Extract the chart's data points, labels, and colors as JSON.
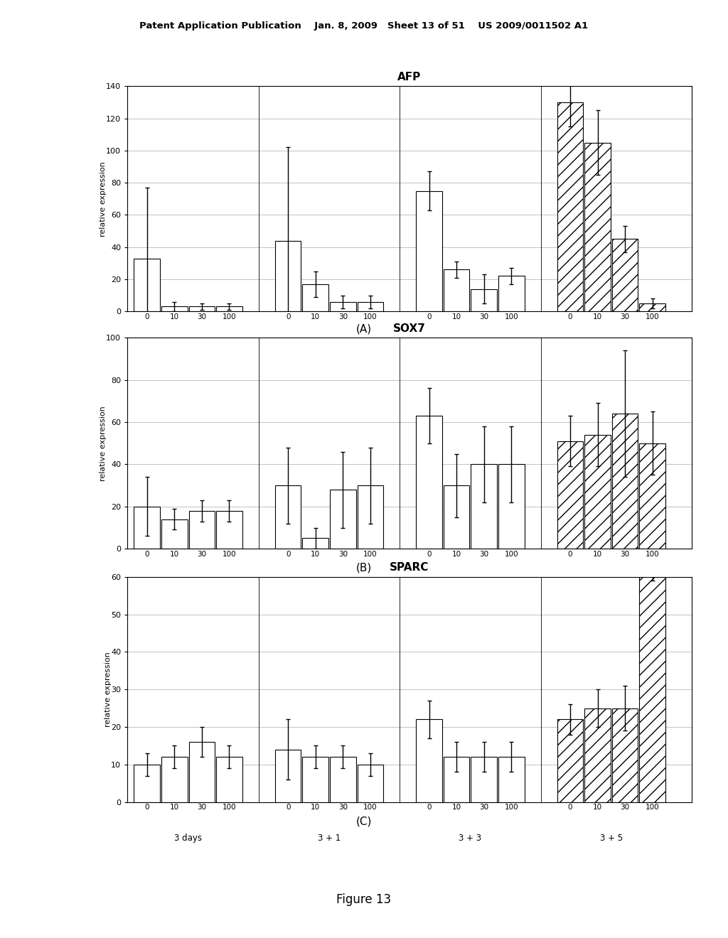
{
  "AFP": {
    "title": "AFP",
    "ylabel": "relative expression",
    "ylim": [
      0,
      140
    ],
    "yticks": [
      0,
      20,
      40,
      60,
      80,
      100,
      120,
      140
    ],
    "groups": [
      "3 days",
      "3 + 1",
      "3 + 3",
      "3 + 5"
    ],
    "x_labels": [
      "0",
      "10",
      "30",
      "100"
    ],
    "bar_values": [
      [
        33,
        3,
        3,
        3
      ],
      [
        44,
        17,
        6,
        6
      ],
      [
        75,
        26,
        14,
        22
      ],
      [
        130,
        105,
        45,
        5
      ]
    ],
    "bar_errors": [
      [
        44,
        3,
        2,
        2
      ],
      [
        58,
        8,
        4,
        4
      ],
      [
        12,
        5,
        9,
        5
      ],
      [
        15,
        20,
        8,
        3
      ]
    ],
    "bar_patterns": [
      [
        "",
        "",
        "",
        ""
      ],
      [
        "",
        "",
        "",
        ""
      ],
      [
        "",
        "",
        "",
        ""
      ],
      [
        "//",
        "//",
        "//",
        "//"
      ]
    ],
    "label": "(A)"
  },
  "SOX7": {
    "title": "SOX7",
    "ylabel": "relative expression",
    "ylim": [
      0,
      100
    ],
    "yticks": [
      0,
      20,
      40,
      60,
      80,
      100
    ],
    "groups": [
      "3 days",
      "3 + 1",
      "3 + 3",
      "3 + 5"
    ],
    "x_labels": [
      "0",
      "10",
      "30",
      "100"
    ],
    "bar_values": [
      [
        20,
        14,
        18,
        18
      ],
      [
        30,
        5,
        28,
        30
      ],
      [
        63,
        30,
        40,
        40
      ],
      [
        51,
        54,
        64,
        50
      ]
    ],
    "bar_errors": [
      [
        14,
        5,
        5,
        5
      ],
      [
        18,
        5,
        18,
        18
      ],
      [
        13,
        15,
        18,
        18
      ],
      [
        12,
        15,
        30,
        15
      ]
    ],
    "bar_patterns": [
      [
        "",
        "",
        "",
        ""
      ],
      [
        "",
        "",
        "",
        ""
      ],
      [
        "",
        "",
        "",
        ""
      ],
      [
        "//",
        "//",
        "//",
        "//"
      ]
    ],
    "label": "(B)"
  },
  "SPARC": {
    "title": "SPARC",
    "ylabel": "relative expression",
    "ylim": [
      0,
      60
    ],
    "yticks": [
      0,
      10,
      20,
      30,
      40,
      50,
      60
    ],
    "groups": [
      "3 days",
      "3 + 1",
      "3 + 3",
      "3 + 5"
    ],
    "x_labels": [
      "0",
      "10",
      "30",
      "100"
    ],
    "bar_values": [
      [
        10,
        12,
        16,
        12
      ],
      [
        14,
        12,
        12,
        10
      ],
      [
        22,
        12,
        12,
        12
      ],
      [
        22,
        25,
        25,
        62
      ]
    ],
    "bar_errors": [
      [
        3,
        3,
        4,
        3
      ],
      [
        8,
        3,
        3,
        3
      ],
      [
        5,
        4,
        4,
        4
      ],
      [
        4,
        5,
        6,
        3
      ]
    ],
    "bar_patterns": [
      [
        "",
        "",
        "",
        ""
      ],
      [
        "",
        "",
        "",
        ""
      ],
      [
        "",
        "",
        "",
        ""
      ],
      [
        "//",
        "//",
        "//",
        "//"
      ]
    ],
    "label": "(C)"
  },
  "header_text": "Patent Application Publication    Jan. 8, 2009   Sheet 13 of 51    US 2009/0011502 A1",
  "figure_label": "Figure 13"
}
